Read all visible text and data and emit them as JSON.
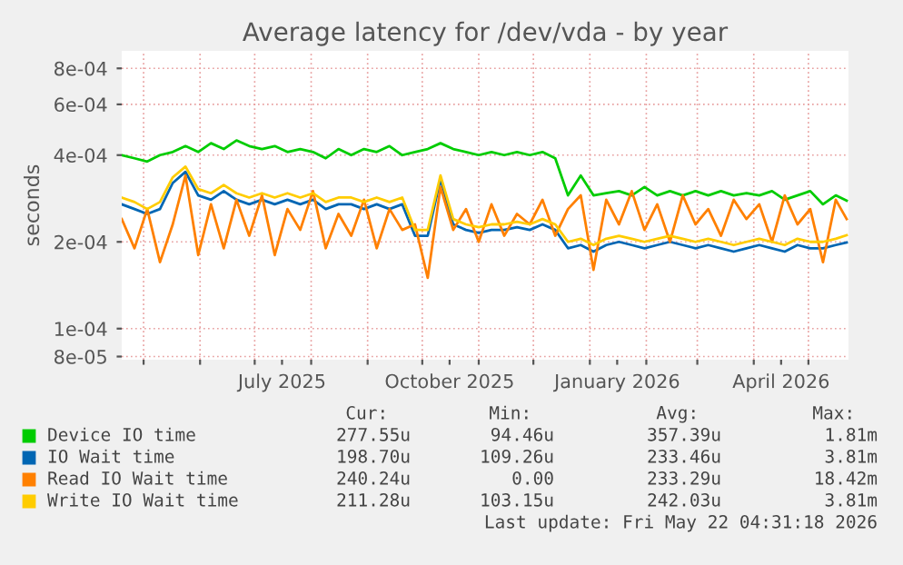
{
  "chart_data": {
    "type": "line",
    "title": "Average latency for /dev/vda - by year",
    "ylabel": "seconds",
    "log": "y",
    "xlim": [
      "2025-04-19",
      "2026-05-23"
    ],
    "ylim": [
      7.8e-05,
      0.00092
    ],
    "yticks": [
      {
        "value": 8e-05,
        "label": "8e-05"
      },
      {
        "value": 0.0001,
        "label": "1e-04"
      },
      {
        "value": 0.0002,
        "label": "2e-04"
      },
      {
        "value": 0.0004,
        "label": "4e-04"
      },
      {
        "value": 0.0006,
        "label": "6e-04"
      },
      {
        "value": 0.0008,
        "label": "8e-04"
      }
    ],
    "xticks": [
      {
        "value": "2025-05-01",
        "label": null
      },
      {
        "value": "2025-06-01",
        "label": null
      },
      {
        "value": "2025-07-01",
        "label": null
      },
      {
        "value": "2025-07-16",
        "label": "July 2025"
      },
      {
        "value": "2025-08-01",
        "label": null
      },
      {
        "value": "2025-09-01",
        "label": null
      },
      {
        "value": "2025-10-01",
        "label": null
      },
      {
        "value": "2025-10-16",
        "label": "October 2025"
      },
      {
        "value": "2025-11-01",
        "label": null
      },
      {
        "value": "2025-12-01",
        "label": null
      },
      {
        "value": "2026-01-01",
        "label": null
      },
      {
        "value": "2026-01-16",
        "label": "January 2026"
      },
      {
        "value": "2026-02-01",
        "label": null
      },
      {
        "value": "2026-03-01",
        "label": null
      },
      {
        "value": "2026-04-01",
        "label": null
      },
      {
        "value": "2026-04-16",
        "label": "April 2026"
      },
      {
        "value": "2026-05-01",
        "label": null
      }
    ],
    "grid": true,
    "legend": "bottom",
    "line_style": "solid",
    "x": [
      "2025-04-19",
      "2025-04-26",
      "2025-05-03",
      "2025-05-10",
      "2025-05-17",
      "2025-05-24",
      "2025-05-31",
      "2025-06-07",
      "2025-06-14",
      "2025-06-21",
      "2025-06-28",
      "2025-07-05",
      "2025-07-12",
      "2025-07-19",
      "2025-07-26",
      "2025-08-02",
      "2025-08-09",
      "2025-08-16",
      "2025-08-23",
      "2025-08-30",
      "2025-09-06",
      "2025-09-13",
      "2025-09-20",
      "2025-09-27",
      "2025-10-04",
      "2025-10-11",
      "2025-10-18",
      "2025-10-25",
      "2025-11-01",
      "2025-11-08",
      "2025-11-15",
      "2025-11-22",
      "2025-11-29",
      "2025-12-06",
      "2025-12-13",
      "2025-12-20",
      "2025-12-27",
      "2026-01-03",
      "2026-01-10",
      "2026-01-17",
      "2026-01-24",
      "2026-01-31",
      "2026-02-07",
      "2026-02-14",
      "2026-02-21",
      "2026-02-28",
      "2026-03-07",
      "2026-03-14",
      "2026-03-21",
      "2026-03-28",
      "2026-04-04",
      "2026-04-11",
      "2026-04-18",
      "2026-04-25",
      "2026-05-02",
      "2026-05-09",
      "2026-05-16",
      "2026-05-22"
    ],
    "series": [
      {
        "name": "Device IO time",
        "color": "#00cc00",
        "values": [
          0.0004,
          0.00039,
          0.00038,
          0.0004,
          0.00041,
          0.00043,
          0.00041,
          0.00044,
          0.00042,
          0.00045,
          0.00043,
          0.00042,
          0.00043,
          0.00041,
          0.00042,
          0.00041,
          0.00039,
          0.00042,
          0.0004,
          0.00042,
          0.00041,
          0.00043,
          0.0004,
          0.00041,
          0.00042,
          0.00044,
          0.00042,
          0.00041,
          0.0004,
          0.00041,
          0.0004,
          0.00041,
          0.0004,
          0.00041,
          0.00039,
          0.00029,
          0.00034,
          0.00029,
          0.000295,
          0.0003,
          0.00029,
          0.00031,
          0.00029,
          0.0003,
          0.00029,
          0.0003,
          0.00029,
          0.0003,
          0.00029,
          0.000295,
          0.00029,
          0.0003,
          0.00028,
          0.00029,
          0.0003,
          0.00027,
          0.00029,
          0.000278
        ]
      },
      {
        "name": "IO Wait time",
        "color": "#0066b3",
        "values": [
          0.00027,
          0.00026,
          0.00025,
          0.00026,
          0.00032,
          0.00035,
          0.00029,
          0.00028,
          0.0003,
          0.00028,
          0.00027,
          0.00028,
          0.00027,
          0.00028,
          0.00027,
          0.00028,
          0.00026,
          0.00027,
          0.00027,
          0.00026,
          0.00027,
          0.00026,
          0.00027,
          0.00021,
          0.00021,
          0.00033,
          0.00023,
          0.00022,
          0.000215,
          0.00022,
          0.00022,
          0.000225,
          0.00022,
          0.00023,
          0.00022,
          0.00019,
          0.000195,
          0.000185,
          0.000195,
          0.0002,
          0.000195,
          0.00019,
          0.000195,
          0.0002,
          0.000195,
          0.00019,
          0.000195,
          0.00019,
          0.000185,
          0.00019,
          0.000195,
          0.00019,
          0.000185,
          0.000195,
          0.00019,
          0.00019,
          0.000195,
          0.000199
        ]
      },
      {
        "name": "Read IO Wait time",
        "color": "#ff8000",
        "values": [
          0.00024,
          0.00019,
          0.00026,
          0.00017,
          0.00023,
          0.00034,
          0.00018,
          0.00027,
          0.00019,
          0.00028,
          0.00021,
          0.00029,
          0.00018,
          0.00026,
          0.00022,
          0.0003,
          0.00019,
          0.00025,
          0.00021,
          0.00028,
          0.00019,
          0.00026,
          0.00022,
          0.00023,
          0.00015,
          0.00031,
          0.00022,
          0.00026,
          0.0002,
          0.00027,
          0.00021,
          0.00025,
          0.00023,
          0.00028,
          0.00021,
          0.00026,
          0.00029,
          0.00016,
          0.00028,
          0.00023,
          0.0003,
          0.00022,
          0.00027,
          0.0002,
          0.00029,
          0.00023,
          0.00026,
          0.00021,
          0.00028,
          0.00024,
          0.00027,
          0.0002,
          0.00029,
          0.00023,
          0.00026,
          0.00017,
          0.00028,
          0.00024
        ]
      },
      {
        "name": "Write IO Wait time",
        "color": "#ffcc00",
        "values": [
          0.000285,
          0.000275,
          0.00026,
          0.000275,
          0.000335,
          0.000365,
          0.000305,
          0.000295,
          0.000315,
          0.000295,
          0.000285,
          0.000295,
          0.000285,
          0.000295,
          0.000285,
          0.000295,
          0.000275,
          0.000285,
          0.000285,
          0.000275,
          0.000285,
          0.000275,
          0.000285,
          0.00022,
          0.00022,
          0.00034,
          0.00024,
          0.00023,
          0.000225,
          0.00023,
          0.00023,
          0.000235,
          0.00023,
          0.00024,
          0.00023,
          0.0002,
          0.000205,
          0.000195,
          0.000205,
          0.00021,
          0.000205,
          0.0002,
          0.000205,
          0.00021,
          0.000205,
          0.0002,
          0.000205,
          0.0002,
          0.000195,
          0.0002,
          0.000205,
          0.0002,
          0.000195,
          0.000205,
          0.0002,
          0.0002,
          0.000205,
          0.000211
        ]
      }
    ],
    "annotations": [
      "Cur:",
      "Min:",
      "Avg:",
      "Max:",
      "277.55u",
      "94.46u",
      "357.39u",
      "1.81m",
      "198.70u",
      "109.26u",
      "233.46u",
      "3.81m",
      "240.24u",
      "0.00",
      "233.29u",
      "18.42m",
      "211.28u",
      "103.15u",
      "242.03u",
      "3.81m",
      "Last update: Fri May 22 04:31:18 2026"
    ]
  }
}
